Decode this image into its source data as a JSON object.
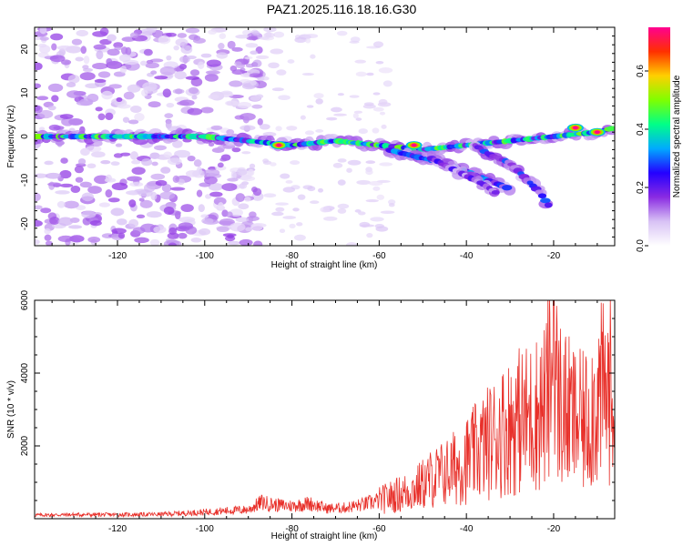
{
  "title": "PAZ1.2025.116.18.16.G30",
  "colors": {
    "snr_line": "#e8302a",
    "axis": "#000000",
    "colormap": [
      "#ffffff",
      "#d8c2f5",
      "#8a2be2",
      "#2400ff",
      "#00aaff",
      "#00ff88",
      "#7fff00",
      "#ffd000",
      "#ff3000",
      "#ff0090"
    ]
  },
  "chart_data": [
    {
      "type": "heatmap",
      "title": "PAZ1.2025.116.18.16.G30",
      "xlabel": "Height of straight line (km)",
      "ylabel": "Frequency (Hz)",
      "xlim": [
        -139,
        -6
      ],
      "ylim": [
        -25,
        25
      ],
      "xticks": [
        -120,
        -100,
        -80,
        -60,
        -40,
        -20
      ],
      "xtick_labels": [
        "-120",
        "-100",
        "-80",
        "-60",
        "-40",
        "-20"
      ],
      "yticks": [
        -20,
        -10,
        0,
        10,
        20
      ],
      "ytick_labels": [
        "-20",
        "-10",
        "0",
        "10",
        "20"
      ],
      "colorbar": {
        "label": "Normalized spectral amplitude",
        "range": [
          0,
          0.75
        ],
        "ticks": [
          0.0,
          0.2,
          0.4,
          0.6
        ],
        "tick_labels": [
          "0.0",
          "0.2",
          "0.4",
          "0.6"
        ]
      },
      "features": [
        {
          "name": "main branch",
          "points": [
            [
              -139,
              0
            ],
            [
              -110,
              0
            ],
            [
              -100,
              0
            ],
            [
              -90,
              -1
            ],
            [
              -80,
              -2
            ],
            [
              -70,
              -1
            ],
            [
              -60,
              -2
            ],
            [
              -50,
              -3
            ],
            [
              -40,
              -2
            ],
            [
              -30,
              -1
            ],
            [
              -20,
              0
            ],
            [
              -10,
              1
            ],
            [
              -6,
              2
            ]
          ],
          "peak": 0.5
        },
        {
          "name": "descending branch 1",
          "points": [
            [
              -58,
              -3
            ],
            [
              -50,
              -5
            ],
            [
              -45,
              -6
            ],
            [
              -40,
              -8
            ],
            [
              -35,
              -10
            ],
            [
              -30,
              -12
            ]
          ],
          "peak": 0.35
        },
        {
          "name": "descending branch 2",
          "points": [
            [
              -38,
              -2
            ],
            [
              -35,
              -4
            ],
            [
              -30,
              -6
            ],
            [
              -27,
              -9
            ],
            [
              -23,
              -13
            ],
            [
              -21,
              -16
            ]
          ],
          "peak": 0.3
        },
        {
          "name": "descending branch 3",
          "points": [
            [
              -48,
              -5
            ],
            [
              -44,
              -7
            ],
            [
              -40,
              -9
            ],
            [
              -36,
              -11
            ],
            [
              -33,
              -13
            ]
          ],
          "peak": 0.25
        },
        {
          "name": "high peaks",
          "points": [
            [
              -83,
              -2
            ],
            [
              -52,
              -2
            ],
            [
              -15,
              2
            ],
            [
              -10,
              1
            ]
          ],
          "peak": 0.75
        }
      ]
    },
    {
      "type": "line",
      "xlabel": "Height of straight line (km)",
      "ylabel": "SNR (10 * v/v)",
      "xlim": [
        -139,
        -6
      ],
      "ylim": [
        0,
        6000
      ],
      "xticks": [
        -120,
        -100,
        -80,
        -60,
        -40,
        -20
      ],
      "xtick_labels": [
        "-120",
        "-100",
        "-80",
        "-60",
        "-40",
        "-20"
      ],
      "yticks": [
        2000,
        4000,
        6000
      ],
      "ytick_labels": [
        "2000",
        "4000",
        "6000"
      ],
      "series": [
        {
          "x": [
            -139,
            -130,
            -120,
            -110,
            -100,
            -95,
            -90,
            -87,
            -84,
            -80,
            -76,
            -72,
            -68,
            -64,
            -60,
            -56,
            -52,
            -48,
            -44,
            -40,
            -36,
            -32,
            -28,
            -25,
            -22,
            -20,
            -19,
            -17,
            -15,
            -13,
            -11,
            -9,
            -7,
            -6
          ],
          "y": [
            100,
            110,
            110,
            120,
            180,
            220,
            250,
            450,
            380,
            350,
            420,
            280,
            300,
            380,
            500,
            650,
            800,
            1100,
            1300,
            1600,
            2000,
            2400,
            2700,
            2800,
            3100,
            4200,
            3300,
            2900,
            2700,
            2600,
            3100,
            3400,
            3500,
            3600
          ]
        }
      ]
    }
  ]
}
